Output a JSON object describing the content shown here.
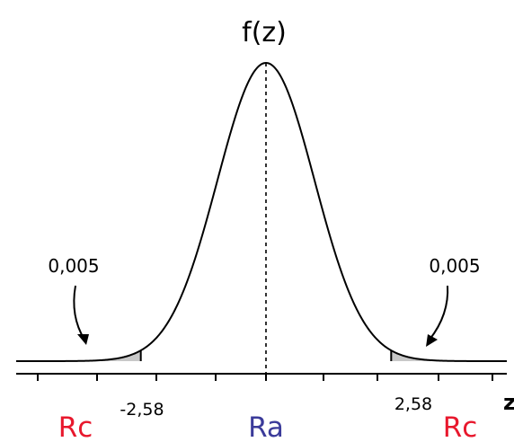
{
  "chart_data": {
    "type": "area",
    "title": "f(z)",
    "xlabel": "z",
    "ylabel": "",
    "distribution": "standard-normal",
    "xlim": [
      -4.2,
      4.2
    ],
    "ylim": [
      0,
      0.4
    ],
    "critical_values": [
      {
        "value": -2.58,
        "label": "-2,58"
      },
      {
        "value": 2.58,
        "label": "2,58"
      }
    ],
    "tail_areas": [
      {
        "side": "left",
        "area": 0.005,
        "label": "0,005"
      },
      {
        "side": "right",
        "area": 0.005,
        "label": "0,005"
      }
    ],
    "regions": [
      {
        "name": "critical-left",
        "label": "Rc",
        "color": "#e8182d"
      },
      {
        "name": "acceptance",
        "label": "Ra",
        "color": "#3b3b9a"
      },
      {
        "name": "critical-right",
        "label": "Rc",
        "color": "#e8182d"
      }
    ],
    "shade_color": "#c8c8c8",
    "mean_line": {
      "value": 0,
      "style": "dashed"
    }
  }
}
